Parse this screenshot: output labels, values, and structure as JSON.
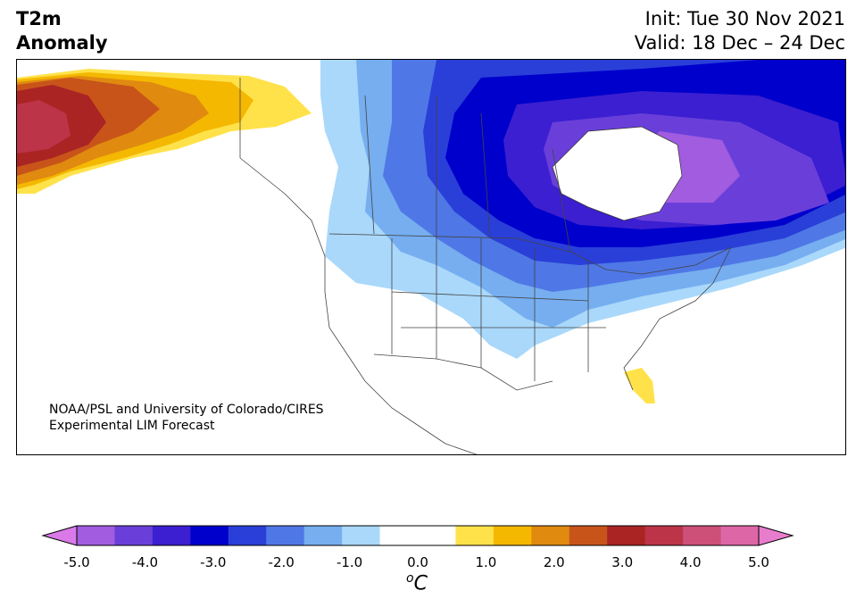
{
  "title": {
    "line1": "T2m",
    "line2": "Anomaly"
  },
  "init": "Init: Tue 30 Nov 2021",
  "valid": "Valid: 18 Dec – 24 Dec",
  "credit": {
    "line1": "NOAA/PSL and University of Colorado/CIRES",
    "line2": "Experimental LIM Forecast"
  },
  "colorbar": {
    "ticks": [
      "-5.0",
      "-4.0",
      "-3.0",
      "-2.0",
      "-1.0",
      "0.0",
      "1.0",
      "2.0",
      "3.0",
      "4.0",
      "5.0"
    ],
    "unit_super": "o",
    "unit": "C",
    "colors": [
      "#d97ae8",
      "#a15ce0",
      "#6a3fd9",
      "#3b1fd0",
      "#0000cc",
      "#2a3fd8",
      "#4f78e6",
      "#76aef0",
      "#a9d8fb",
      "#ffffff",
      "#ffffff",
      "#ffe24a",
      "#f4b800",
      "#e08a10",
      "#c8541a",
      "#aa2424",
      "#bc3448",
      "#cc5078",
      "#dd66a6",
      "#e87ccd"
    ]
  },
  "map": {
    "region": "North America",
    "features": [
      "anomaly-fill",
      "country-borders",
      "state-borders",
      "coastlines"
    ],
    "legend_range": [
      -5.0,
      5.0
    ],
    "land_color": "#ffffff",
    "border_color": "#444444"
  }
}
